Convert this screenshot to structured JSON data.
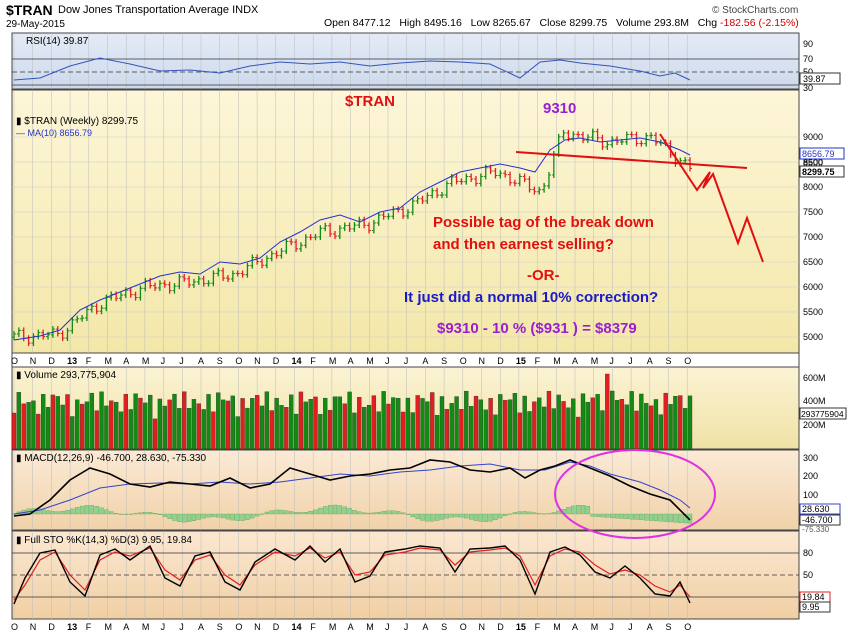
{
  "header": {
    "symbol": "$TRAN",
    "name": "Dow Jones Transportation Average INDX",
    "date": "29-May-2015",
    "open_label": "Open",
    "open": "8477.12",
    "high_label": "High",
    "high": "8495.16",
    "low_label": "Low",
    "low": "8265.67",
    "close_label": "Close",
    "close": "8299.75",
    "volume_label": "Volume",
    "volume": "293.8M",
    "chg_label": "Chg",
    "chg": "-182.56 (-2.15%)",
    "watermark": "© StockCharts.com"
  },
  "colors": {
    "up": "#138a13",
    "down": "#e02020",
    "ma": "#2233cc",
    "annotation_red": "#e01010",
    "annotation_blue": "#1a1acc",
    "annotation_purple": "#9b1fd0",
    "ellipse": "#e030e0"
  },
  "rsi": {
    "label": "RSI(14) 39.87",
    "levels": [
      "90",
      "70",
      "50",
      "30"
    ],
    "current": "39.87"
  },
  "price": {
    "legend_price": "$TRAN (Weekly) 8299.75",
    "legend_ma": "MA(10) 8656.79",
    "tag_ma": "8656.79",
    "tag_mid": "8500",
    "tag_close": "8299.75",
    "ticks": [
      "9000",
      "8500",
      "8000",
      "7500",
      "7000",
      "6500",
      "6000",
      "5500",
      "5000"
    ]
  },
  "volume": {
    "label": "Volume 293,775,904",
    "ticks": [
      "600M",
      "400M",
      "200M"
    ],
    "current": "293775904"
  },
  "macd": {
    "label": "MACD(12,26,9) -46.700, 28.630, -75.330",
    "ticks": [
      "300",
      "200",
      "100"
    ],
    "tag_signal": "28.630",
    "tag_macd": "-46.700",
    "tag_hist": "-75.330"
  },
  "sto": {
    "label": "Full STO %K(14,3) %D(3) 9.95, 19.84",
    "ticks": [
      "80",
      "50"
    ],
    "tag_d": "19.84",
    "tag_k": "9.95"
  },
  "months": [
    "O",
    "N",
    "D",
    "13",
    "F",
    "M",
    "A",
    "M",
    "J",
    "J",
    "A",
    "S",
    "O",
    "N",
    "D",
    "14",
    "F",
    "M",
    "A",
    "M",
    "J",
    "J",
    "A",
    "S",
    "O",
    "N",
    "D",
    "15",
    "F",
    "M",
    "A",
    "M",
    "J",
    "J",
    "A",
    "S",
    "O"
  ],
  "annotations": {
    "title": "$TRAN",
    "peak": "9310",
    "line1": "Possible tag of the break down",
    "line2": "and then earnest selling?",
    "or": "-OR-",
    "question": "It just did a normal 10% correction?",
    "calc": "$9310 -  10 % ($931 ) = $8379"
  },
  "chart_data": {
    "type": "line",
    "title": "$TRAN Dow Jones Transportation Average INDX (Weekly)",
    "x_range": [
      "2012-10",
      "2015-05-29"
    ],
    "ylim": [
      4800,
      9600
    ],
    "series": [
      {
        "name": "$TRAN (Weekly)",
        "x": [
          "2012-10",
          "2012-12",
          "2013-02",
          "2013-04",
          "2013-06",
          "2013-08",
          "2013-10",
          "2013-12",
          "2014-02",
          "2014-04",
          "2014-06",
          "2014-08",
          "2014-10",
          "2014-11",
          "2015-01",
          "2015-03",
          "2015-05"
        ],
        "values": [
          5000,
          5050,
          5700,
          6000,
          6100,
          6250,
          6700,
          7100,
          7250,
          7600,
          8100,
          8300,
          7900,
          9100,
          8900,
          9000,
          8300
        ]
      },
      {
        "name": "MA(10)",
        "values": []
      }
    ]
  }
}
